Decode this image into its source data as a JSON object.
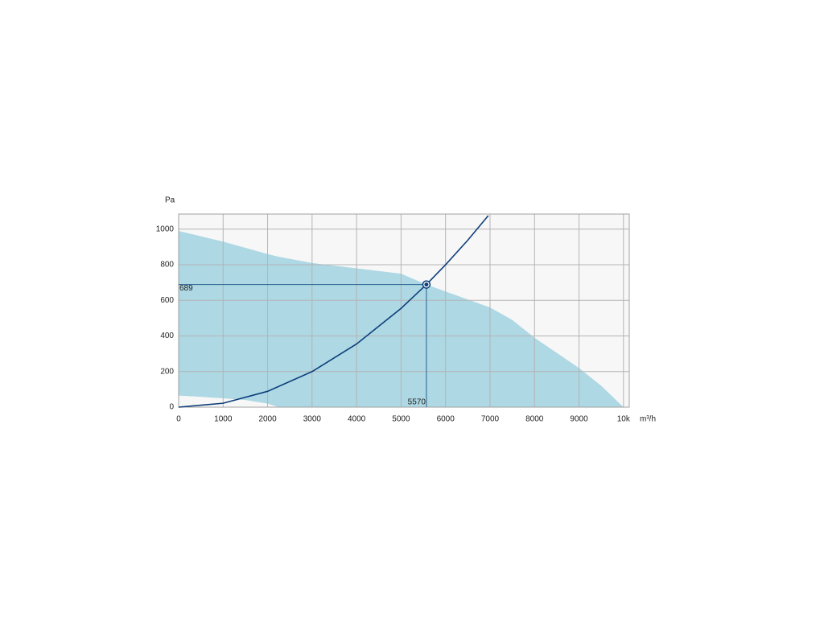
{
  "chart_data": {
    "type": "fan-curve",
    "y_label": "Pa",
    "x_label": "m³/h",
    "xlim": [
      0,
      10130
    ],
    "ylim": [
      0,
      1085
    ],
    "xticks": [
      0,
      1000,
      2000,
      3000,
      4000,
      5000,
      6000,
      7000,
      8000,
      9000,
      {
        "value": 10000,
        "label": "10k"
      }
    ],
    "yticks": [
      0,
      200,
      400,
      600,
      800,
      1000
    ],
    "grid": true,
    "envelope": {
      "color": "#add8e4",
      "x": [
        0,
        500,
        1000,
        1500,
        2000,
        2250,
        3000,
        4000,
        5000,
        5570,
        6000,
        7000,
        7500,
        8000,
        9000,
        9500,
        10000
      ],
      "upper": [
        990,
        960,
        930,
        895,
        860,
        845,
        810,
        780,
        750,
        689,
        650,
        560,
        490,
        390,
        220,
        120,
        0
      ],
      "lower": [
        65,
        58,
        50,
        40,
        20,
        0,
        0,
        0,
        0,
        0,
        0,
        0,
        0,
        0,
        0,
        0,
        0
      ]
    },
    "system_curve": {
      "color": "#0d3f7a",
      "x": [
        0,
        1000,
        2000,
        3000,
        4000,
        5000,
        5570,
        6000,
        6500,
        6960
      ],
      "y": [
        0,
        22,
        89,
        200,
        355,
        555,
        689,
        800,
        938,
        1076
      ]
    },
    "operating_point": {
      "x": 5570,
      "y": 689
    }
  }
}
